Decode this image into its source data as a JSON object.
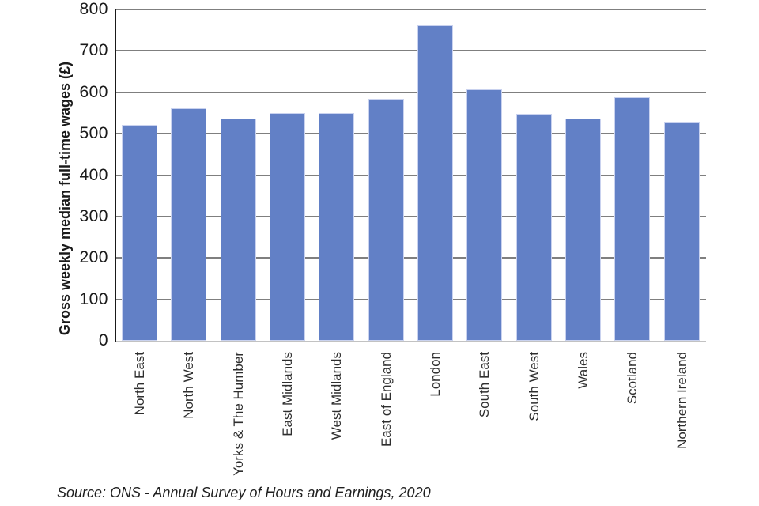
{
  "chart_data": {
    "type": "bar",
    "title": "",
    "categories": [
      "North East",
      "North West",
      "Yorks & The Humber",
      "East Midlands",
      "West Midlands",
      "East of England",
      "London",
      "South East",
      "South West",
      "Wales",
      "Scotland",
      "Northern Ireland"
    ],
    "values": [
      522,
      562,
      536,
      550,
      550,
      585,
      762,
      608,
      548,
      536,
      588,
      528
    ],
    "xlabel": "",
    "ylabel": "Gross weekly median full-time wages (£)",
    "ylim": [
      0,
      800
    ],
    "yticks": [
      0,
      100,
      200,
      300,
      400,
      500,
      600,
      700,
      800
    ],
    "grid": "horizontal gridlines every 100, drawn behind bars",
    "legend": "none",
    "colors": {
      "bar_fill": "#6280c6",
      "bar_border": "#c9d2ef",
      "gridline": "#7f7f7f",
      "y_axis_line": "#1a1a1a",
      "x_baseline": "#c2c2c2",
      "text": "#1a1a1a"
    }
  },
  "source_note": "Source: ONS - Annual Survey of Hours and Earnings, 2020"
}
